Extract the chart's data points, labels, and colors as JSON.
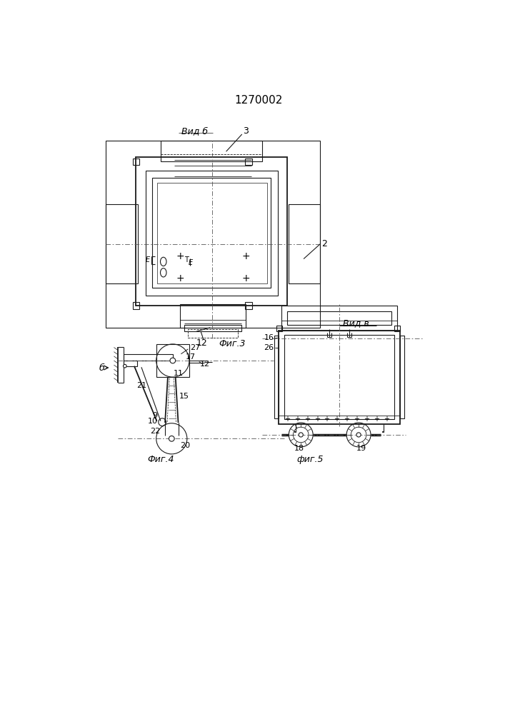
{
  "title": "1270002",
  "bg_color": "#ffffff",
  "line_color": "#1a1a1a",
  "fig3_label": "Фиг.3",
  "fig4_label": "Фиг.4",
  "fig5_label": "фиг.5",
  "vid_b_label": "Вид б",
  "vid_v_label": "Вид в",
  "label_2": "2",
  "label_3": "3",
  "label_6": "б",
  "label_9": "9",
  "label_10": "10",
  "label_11": "11",
  "label_12": "12",
  "label_15": "15",
  "label_16": "16",
  "label_17": "17",
  "label_18": "18",
  "label_19": "19",
  "label_20": "20",
  "label_21": "21",
  "label_22": "22",
  "label_26": "26",
  "label_27": "27"
}
